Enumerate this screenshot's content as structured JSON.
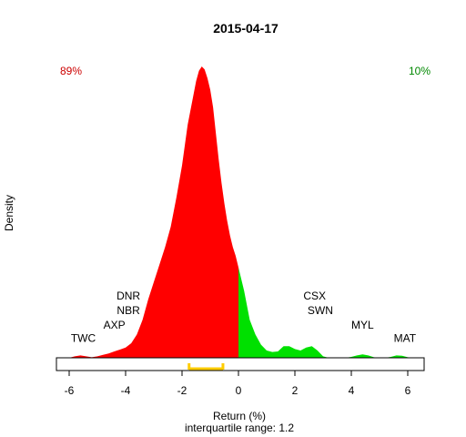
{
  "chart_data": {
    "type": "area",
    "title": "2015-04-17",
    "xlabel": "Return (%)",
    "ylabel": "Density",
    "subtitle": "interquartile range: 1.2",
    "xlim": [
      -6.6,
      7.0
    ],
    "ylim": [
      0,
      1.0
    ],
    "x_ticks": [
      -6,
      -4,
      -2,
      0,
      2,
      4,
      6
    ],
    "left_percent": "89%",
    "right_percent": "10%",
    "colors": {
      "negative": "#ff0000",
      "positive": "#00e000",
      "iqr": "#ffcc00",
      "left_percent": "#cc0000",
      "right_percent": "#008800",
      "baseline": "#bfbfbf"
    },
    "density": {
      "x": [
        -6.0,
        -5.8,
        -5.6,
        -5.4,
        -5.2,
        -5.0,
        -4.8,
        -4.6,
        -4.4,
        -4.2,
        -4.0,
        -3.8,
        -3.6,
        -3.4,
        -3.2,
        -3.0,
        -2.8,
        -2.6,
        -2.4,
        -2.2,
        -2.0,
        -1.8,
        -1.6,
        -1.5,
        -1.4,
        -1.3,
        -1.2,
        -1.1,
        -1.0,
        -0.9,
        -0.8,
        -0.7,
        -0.6,
        -0.5,
        -0.4,
        -0.3,
        -0.2,
        -0.1,
        0.0,
        0.2,
        0.4,
        0.6,
        0.8,
        1.0,
        1.2,
        1.4,
        1.6,
        1.8,
        2.0,
        2.2,
        2.4,
        2.6,
        2.8,
        3.0,
        3.2,
        3.4,
        3.6,
        3.8,
        4.0,
        4.2,
        4.4,
        4.6,
        4.8,
        5.0,
        5.2,
        5.4,
        5.6,
        5.8,
        6.0,
        6.2,
        6.4
      ],
      "y": [
        0.0,
        0.005,
        0.008,
        0.005,
        0.002,
        0.005,
        0.01,
        0.015,
        0.022,
        0.028,
        0.035,
        0.05,
        0.08,
        0.13,
        0.2,
        0.26,
        0.32,
        0.38,
        0.45,
        0.55,
        0.66,
        0.8,
        0.9,
        0.95,
        0.985,
        1.0,
        0.99,
        0.96,
        0.92,
        0.86,
        0.77,
        0.68,
        0.6,
        0.53,
        0.47,
        0.42,
        0.38,
        0.35,
        0.31,
        0.23,
        0.13,
        0.08,
        0.045,
        0.025,
        0.02,
        0.022,
        0.04,
        0.04,
        0.03,
        0.025,
        0.035,
        0.04,
        0.025,
        0.005,
        0.0,
        0.0,
        0.0,
        0.0,
        0.003,
        0.008,
        0.012,
        0.008,
        0.002,
        0.0,
        0.0,
        0.003,
        0.008,
        0.007,
        0.002,
        0.0,
        0.0
      ]
    },
    "iqr": [
      -1.75,
      -0.55
    ],
    "annotations": [
      {
        "text": "TWC",
        "x": -5.5,
        "y": 0.055
      },
      {
        "text": "AXP",
        "x": -4.4,
        "y": 0.1
      },
      {
        "text": "NBR",
        "x": -3.9,
        "y": 0.15
      },
      {
        "text": "DNR",
        "x": -3.9,
        "y": 0.2
      },
      {
        "text": "CSX",
        "x": 2.7,
        "y": 0.2
      },
      {
        "text": "SWN",
        "x": 2.9,
        "y": 0.15
      },
      {
        "text": "MYL",
        "x": 4.4,
        "y": 0.1
      },
      {
        "text": "MAT",
        "x": 5.9,
        "y": 0.055
      }
    ]
  }
}
